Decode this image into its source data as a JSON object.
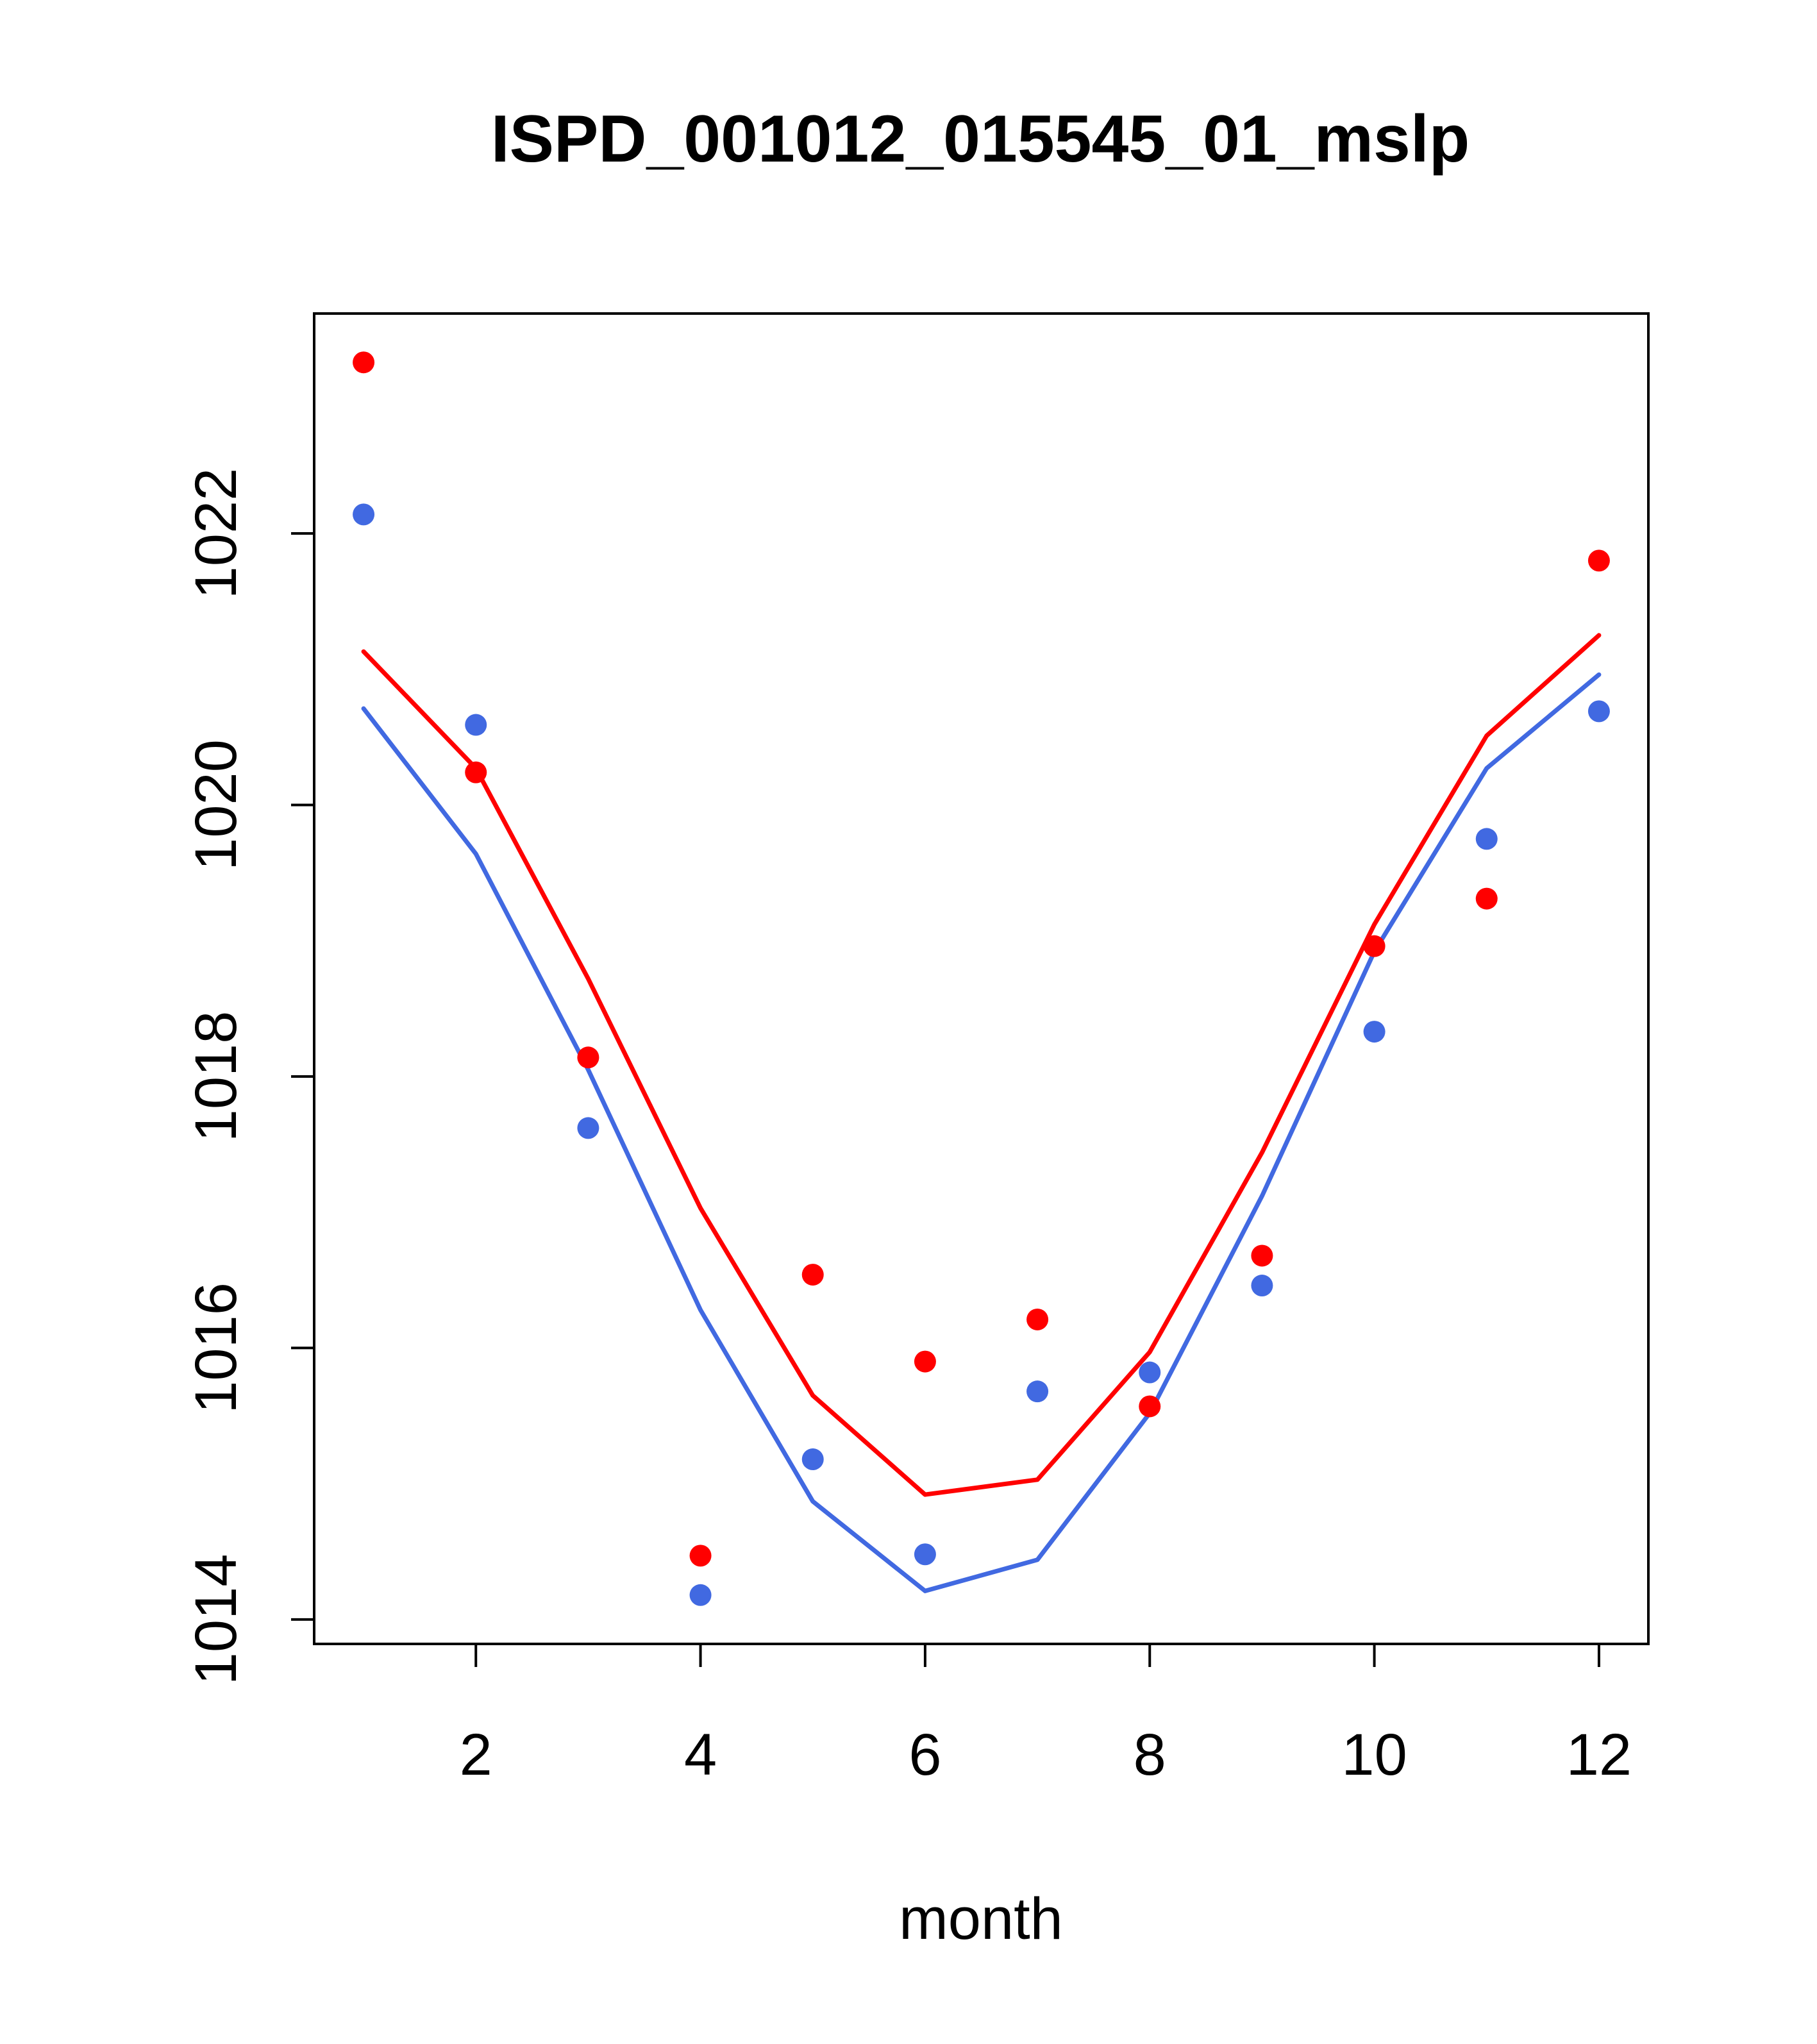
{
  "chart_data": {
    "type": "line",
    "title": "ISPD_001012_015545_01_mslp",
    "xlabel": "month",
    "ylabel": "",
    "xlim": [
      0.56,
      12.44
    ],
    "ylim": [
      1013.82,
      1023.62
    ],
    "xticks": [
      2,
      4,
      6,
      8,
      10,
      12
    ],
    "yticks": [
      1014,
      1016,
      1018,
      1020,
      1022
    ],
    "grid": false,
    "legend": "none",
    "x": [
      1,
      2,
      3,
      4,
      5,
      6,
      7,
      8,
      9,
      10,
      11,
      12
    ],
    "series": [
      {
        "name": "red-line",
        "style": "line",
        "color": "#ff0000",
        "values": [
          1021.13,
          1020.27,
          1018.72,
          1017.03,
          1015.65,
          1014.92,
          1015.03,
          1015.97,
          1017.44,
          1019.12,
          1020.51,
          1021.25
        ]
      },
      {
        "name": "blue-line",
        "style": "line",
        "color": "#4169e1",
        "values": [
          1020.71,
          1019.64,
          1018.05,
          1016.28,
          1014.87,
          1014.21,
          1014.44,
          1015.52,
          1017.12,
          1018.92,
          1020.27,
          1020.96
        ]
      },
      {
        "name": "red-points",
        "style": "points",
        "color": "#ff0000",
        "values": [
          1023.26,
          1020.24,
          1018.14,
          1014.47,
          1016.54,
          1015.9,
          1016.21,
          1015.57,
          1016.68,
          1018.96,
          1019.31,
          1021.8
        ]
      },
      {
        "name": "blue-points",
        "style": "points",
        "color": "#4169e1",
        "values": [
          1022.14,
          1020.59,
          1017.62,
          1014.18,
          1015.18,
          1014.48,
          1015.68,
          1015.82,
          1016.46,
          1018.33,
          1019.75,
          1020.69
        ]
      }
    ]
  }
}
